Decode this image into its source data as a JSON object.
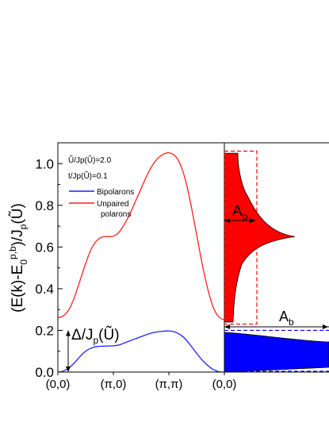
{
  "chart_data": {
    "type": "line",
    "ylabel": "(E(k)-E0p,b)/Jp(Ũ)",
    "ylim": [
      0.0,
      1.1
    ],
    "yticks": [
      0.0,
      0.2,
      0.4,
      0.6,
      0.8,
      1.0
    ],
    "ytick_labels": [
      "0.0",
      "0.2",
      "0.4",
      "0.6",
      "0.8",
      "1.0"
    ],
    "xticks": [
      0,
      1,
      2,
      3
    ],
    "xtick_labels": [
      "(0,0)",
      "(π,0)",
      "(π,π)",
      "(0,0)"
    ],
    "params": [
      "Ũ/Jp(Ũ)=2.0",
      "t/Jp(Ũ)=0.1"
    ],
    "legend": [
      {
        "label": "Bipolarons",
        "color": "#1f1fff"
      },
      {
        "label": "Unpaired polarons",
        "color": "#ff1f1f"
      }
    ],
    "series": [
      {
        "name": "Bipolarons",
        "color": "#1f1fff",
        "x": [
          0,
          0.1,
          0.2,
          0.3,
          0.4,
          0.5,
          0.6,
          0.7,
          0.8,
          0.9,
          1.0,
          1.1,
          1.2,
          1.3,
          1.4,
          1.5,
          1.6,
          1.7,
          1.8,
          1.9,
          2.0,
          2.1,
          2.2,
          2.3,
          2.4,
          2.5,
          2.6,
          2.7,
          2.8,
          2.9,
          3.0
        ],
        "y": [
          0.0,
          0.005,
          0.02,
          0.045,
          0.075,
          0.1,
          0.115,
          0.122,
          0.124,
          0.125,
          0.126,
          0.13,
          0.14,
          0.15,
          0.16,
          0.17,
          0.18,
          0.188,
          0.193,
          0.196,
          0.197,
          0.193,
          0.18,
          0.158,
          0.125,
          0.09,
          0.058,
          0.032,
          0.012,
          0.002,
          0.0
        ]
      },
      {
        "name": "Unpaired polarons",
        "color": "#ff1f1f",
        "x": [
          0,
          0.1,
          0.2,
          0.3,
          0.4,
          0.5,
          0.6,
          0.7,
          0.8,
          0.9,
          1.0,
          1.1,
          1.2,
          1.3,
          1.4,
          1.5,
          1.6,
          1.7,
          1.8,
          1.9,
          2.0,
          2.1,
          2.2,
          2.3,
          2.4,
          2.5,
          2.6,
          2.7,
          2.8,
          2.9,
          3.0
        ],
        "y": [
          0.26,
          0.27,
          0.3,
          0.36,
          0.44,
          0.52,
          0.59,
          0.63,
          0.648,
          0.65,
          0.652,
          0.67,
          0.71,
          0.76,
          0.82,
          0.88,
          0.94,
          0.99,
          1.025,
          1.045,
          1.052,
          1.04,
          1.0,
          0.92,
          0.8,
          0.66,
          0.52,
          0.4,
          0.31,
          0.265,
          0.25
        ]
      }
    ],
    "annotations": {
      "gap": "Δ/Jp(Ũ)",
      "gap_value": 0.2,
      "Ap": "Ap",
      "Ab": "Ab",
      "dashed_box_ylim": [
        0.23,
        1.06
      ],
      "dashed_band_ylim": [
        0.0,
        0.2
      ]
    }
  }
}
